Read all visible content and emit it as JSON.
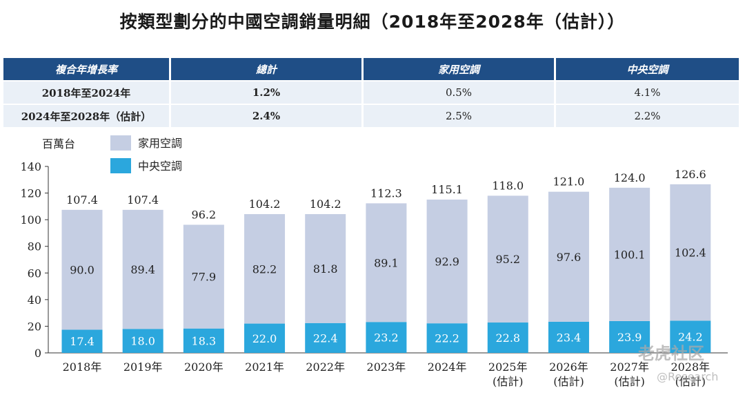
{
  "title": "按類型劃分的中國空調銷量明細（2018年至2028年（估計））",
  "table": {
    "headers": [
      "複合年增長率",
      "總計",
      "家用空調",
      "中央空調"
    ],
    "rows": [
      [
        "2018年至2024年",
        "1.2%",
        "0.5%",
        "4.1%"
      ],
      [
        "2024年至2028年（估計）",
        "2.4%",
        "2.5%",
        "2.2%"
      ]
    ]
  },
  "colors": {
    "header_bg": "#1f4e86",
    "row_bg": "#eaf0f7",
    "household": "#c5cee3",
    "central": "#2ba7dd"
  },
  "watermark": {
    "logo": "老虎社区",
    "handle": "@Research"
  },
  "chart_data": {
    "type": "bar",
    "stacked": true,
    "unit_label": "百萬台",
    "categories": [
      "2018年",
      "2019年",
      "2020年",
      "2021年",
      "2022年",
      "2023年",
      "2024年",
      "2025年",
      "2026年",
      "2027年",
      "2028年"
    ],
    "category_sublabels": [
      "",
      "",
      "",
      "",
      "",
      "",
      "",
      "(估計)",
      "(估計)",
      "(估計)",
      "(估計)"
    ],
    "series": [
      {
        "name": "中央空調",
        "values": [
          17.4,
          18.0,
          18.3,
          22.0,
          22.4,
          23.2,
          22.2,
          22.8,
          23.4,
          23.9,
          24.2
        ]
      },
      {
        "name": "家用空調",
        "values": [
          90.0,
          89.4,
          77.9,
          82.2,
          81.8,
          89.1,
          92.9,
          95.2,
          97.6,
          100.1,
          102.4
        ]
      }
    ],
    "totals": [
      107.4,
      107.4,
      96.2,
      104.2,
      104.2,
      112.3,
      115.1,
      118.0,
      121.0,
      124.0,
      126.6
    ],
    "legend": [
      "家用空調",
      "中央空調"
    ],
    "ylim": [
      0,
      140
    ],
    "yticks": [
      0,
      20,
      40,
      60,
      80,
      100,
      120,
      140
    ],
    "grid": false,
    "legend_position": "top-left"
  }
}
